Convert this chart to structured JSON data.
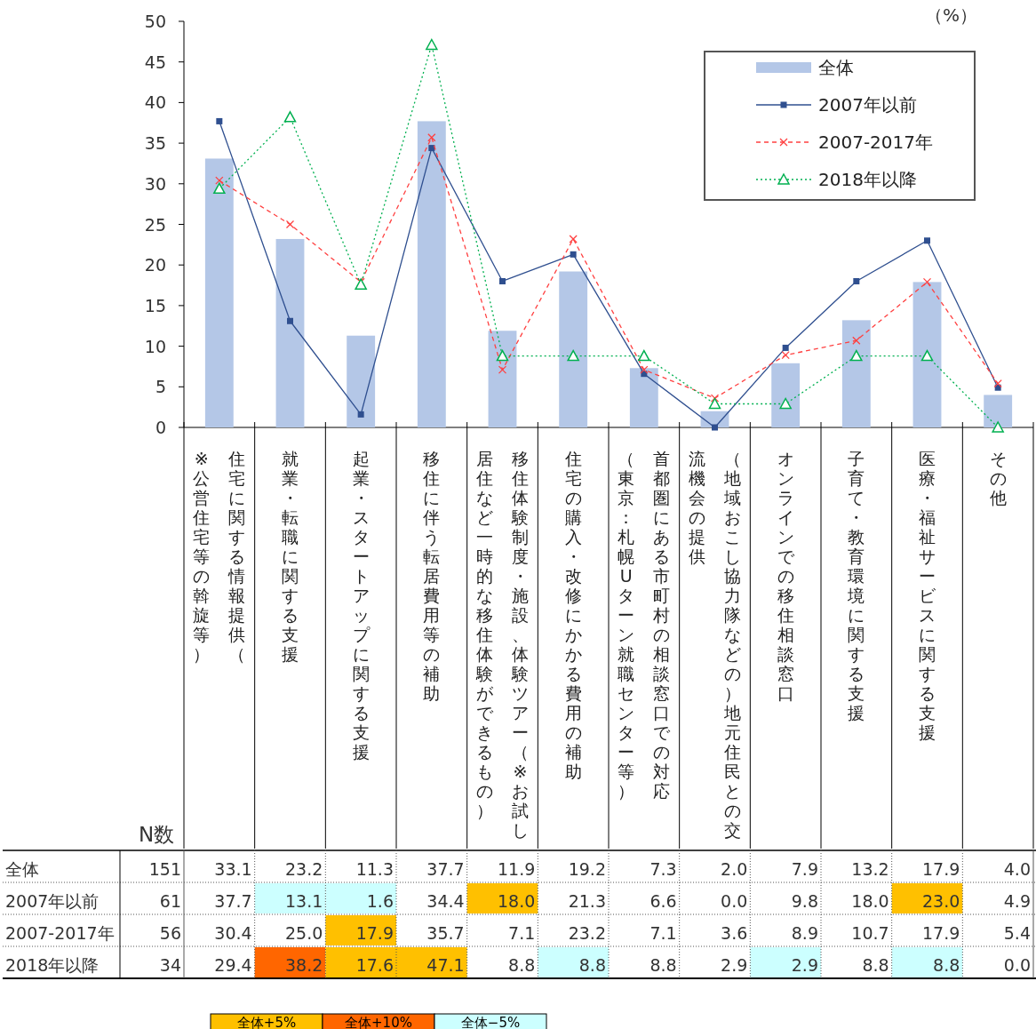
{
  "chart_data": {
    "type": "bar",
    "ylabel": "（%）",
    "categories": [
      "住宅に関する情報提供（※公営住宅等の斡旋等）",
      "就業・転職に関する支援",
      "起業・スタートアップに関する支援",
      "移住に伴う転居費用等の補助",
      "移住体験制度・施設、体験ツアー（※お試し居住など一時的な移住体験ができるもの）",
      "住宅の購入・改修にかかる費用の補助",
      "首都圏にある市町村の相談窓口での対応（東京：札幌Uターン就職センター等）",
      "（地域おこし協力隊などの）地元住民との交流機会の提供",
      "オンラインでの移住相談窓口",
      "子育て・教育環境に関する支援",
      "医療・福祉サービスに関する支援",
      "その他"
    ],
    "series": [
      {
        "name": "全体",
        "color": "#b4c7e7",
        "values": [
          33.1,
          23.2,
          11.3,
          37.7,
          11.9,
          19.2,
          7.3,
          2.0,
          7.9,
          13.2,
          17.9,
          4.0
        ],
        "value_labels": [
          "33.1",
          "23.2",
          "11.3",
          "37.7",
          "11.9",
          "19.2",
          "7.3",
          "2.0",
          "7.9",
          "13.2",
          "17.9",
          "4.0"
        ]
      },
      {
        "name": "2007年以前",
        "type": "line",
        "color": "#2f4f8f",
        "marker": "square",
        "line_style": "solid",
        "values": [
          37.7,
          13.1,
          1.6,
          34.4,
          18.0,
          21.3,
          6.6,
          0.0,
          9.8,
          18.0,
          23.0,
          4.9
        ],
        "value_labels": [
          "37.7",
          "13.1",
          "1.6",
          "34.4",
          "18.0",
          "21.3",
          "6.6",
          "0.0",
          "9.8",
          "18.0",
          "23.0",
          "4.9"
        ]
      },
      {
        "name": "2007-2017年",
        "type": "line",
        "color": "#ff4040",
        "marker": "cross",
        "line_style": "dashed",
        "values": [
          30.4,
          25.0,
          17.9,
          35.7,
          7.1,
          23.2,
          7.1,
          3.6,
          8.9,
          10.7,
          17.9,
          5.4
        ],
        "value_labels": [
          "30.4",
          "25.0",
          "17.9",
          "35.7",
          "7.1",
          "23.2",
          "7.1",
          "3.6",
          "8.9",
          "10.7",
          "17.9",
          "5.4"
        ]
      },
      {
        "name": "2018年以降",
        "type": "line",
        "color": "#00b050",
        "marker": "triangle",
        "line_style": "dotted",
        "values": [
          29.4,
          38.2,
          17.6,
          47.1,
          8.8,
          8.8,
          8.8,
          2.9,
          2.9,
          8.8,
          8.8,
          0.0
        ],
        "value_labels": [
          "29.4",
          "38.2",
          "17.6",
          "47.1",
          "8.8",
          "8.8",
          "8.8",
          "2.9",
          "2.9",
          "8.8",
          "8.8",
          "0.0"
        ]
      }
    ],
    "ylim": [
      0,
      50
    ],
    "yticks": [
      0,
      5,
      10,
      15,
      20,
      25,
      30,
      35,
      40,
      45,
      50
    ],
    "legend": "top right",
    "annotations": [
      "N数",
      "151",
      "61",
      "56",
      "34",
      "全体+5%",
      "全体+10%",
      "全体−5%"
    ]
  }
}
